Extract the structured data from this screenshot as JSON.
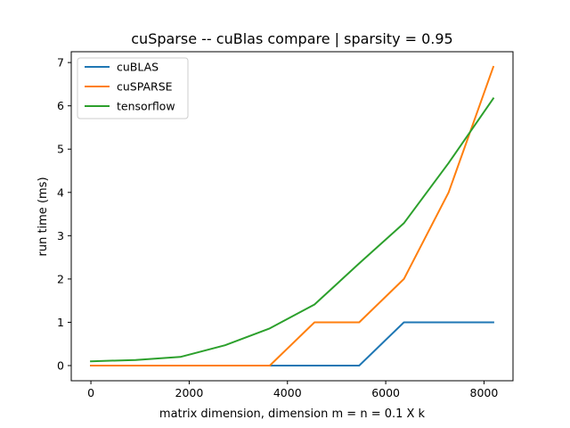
{
  "chart_data": {
    "type": "line",
    "title": "cuSparse -- cuBlas compare | sparsity = 0.95",
    "xlabel": "matrix dimension, dimension m = n = 0.1 X k",
    "ylabel": "run time (ms)",
    "xlim": [
      -400,
      8590
    ],
    "ylim": [
      -0.35,
      7.25
    ],
    "xticks": [
      0,
      2000,
      4000,
      6000,
      8000
    ],
    "yticks": [
      0,
      1,
      2,
      3,
      4,
      5,
      6,
      7
    ],
    "grid": false,
    "legend_position": "top-left",
    "series": [
      {
        "name": "cuBLAS",
        "color": "#1f77b4",
        "x": [
          0,
          910,
          1820,
          2730,
          3640,
          4550,
          5460,
          6370,
          7280,
          8190
        ],
        "y": [
          0,
          0,
          0,
          0,
          0,
          0,
          0,
          1,
          1,
          1
        ]
      },
      {
        "name": "cuSPARSE",
        "color": "#ff7f0e",
        "x": [
          0,
          910,
          1820,
          2730,
          3640,
          4550,
          5460,
          6370,
          7280,
          8190
        ],
        "y": [
          0,
          0,
          0,
          0,
          0,
          1,
          1,
          2,
          4,
          6.9
        ]
      },
      {
        "name": "tensorflow",
        "color": "#2ca02c",
        "x": [
          0,
          910,
          1820,
          2730,
          3640,
          4550,
          5460,
          6370,
          7280,
          8190
        ],
        "y": [
          0.1,
          0.13,
          0.2,
          0.47,
          0.86,
          1.41,
          2.36,
          3.29,
          4.68,
          6.17
        ]
      }
    ]
  }
}
